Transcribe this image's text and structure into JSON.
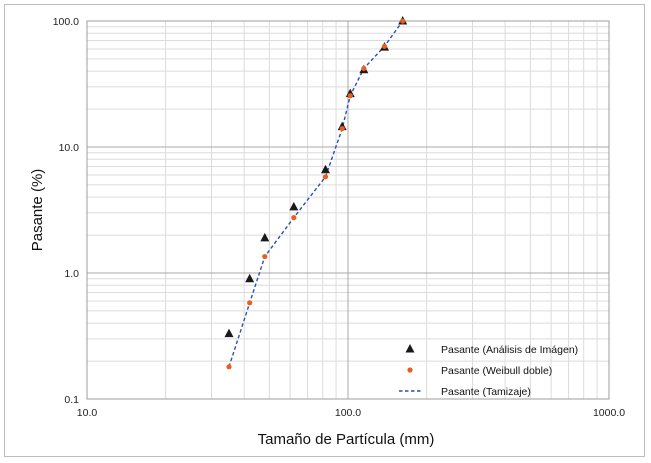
{
  "chart_data": {
    "type": "scatter",
    "xscale": "log",
    "yscale": "log",
    "xlim": [
      10,
      1000
    ],
    "ylim": [
      0.1,
      100
    ],
    "xlabel": "Tamaño de Partícula (mm)",
    "ylabel": "Pasante (%)",
    "x_tick_labels": [
      "10.0",
      "100.0",
      "1000.0"
    ],
    "y_tick_labels": [
      "0.1",
      "1.0",
      "10.0",
      "100.0"
    ],
    "grid": true,
    "legend_position": "bottom-right",
    "series": [
      {
        "name": "Pasante (Análisis de Imágen)",
        "marker": "triangle",
        "color": "#1a1a1a",
        "x": [
          35,
          42,
          48,
          62,
          82,
          95,
          102,
          115,
          138,
          162
        ],
        "y": [
          0.33,
          0.9,
          1.9,
          3.35,
          6.6,
          14.5,
          26.5,
          41,
          62,
          100
        ]
      },
      {
        "name": "Pasante (Weibull doble)",
        "marker": "circle",
        "color": "#e8601c",
        "x": [
          35,
          42,
          48,
          62,
          82,
          95,
          102,
          115,
          138,
          162
        ],
        "y": [
          0.18,
          0.58,
          1.35,
          2.75,
          5.8,
          14,
          25.5,
          42,
          63,
          100
        ]
      },
      {
        "name": "Pasante (Tamizaje)",
        "marker": "dashed-line",
        "color": "#2a4fb5",
        "x": [
          35,
          42,
          48,
          62,
          82,
          95,
          102,
          115,
          138,
          162
        ],
        "y": [
          0.18,
          0.58,
          1.35,
          2.75,
          5.8,
          14,
          25.5,
          42,
          63,
          100
        ]
      }
    ]
  }
}
